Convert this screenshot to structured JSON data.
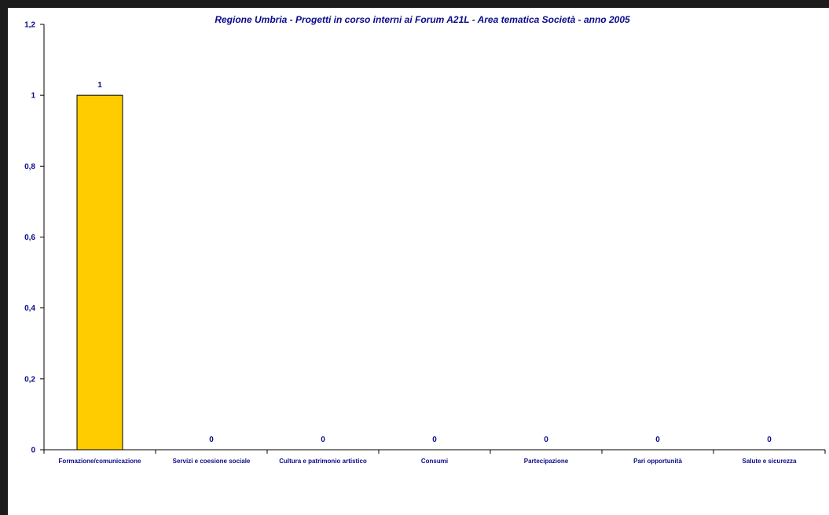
{
  "chart_data": {
    "type": "bar",
    "title": "Regione Umbria - Progetti in corso interni ai Forum A21L - Area tematica Società  - anno 2005",
    "xlabel": "",
    "ylabel": "",
    "categories": [
      "Formazione/comunicazione",
      "Servizi e coesione sociale",
      "Cultura e patrimonio artistico",
      "Consumi",
      "Partecipazione",
      "Pari opportunità",
      "Salute e sicurezza"
    ],
    "values": [
      1,
      0,
      0,
      0,
      0,
      0,
      0
    ],
    "data_labels": [
      "1",
      "0",
      "0",
      "0",
      "0",
      "0",
      "0"
    ],
    "ylim": [
      0,
      1.2
    ],
    "yticks": [
      0,
      0.2,
      0.4,
      0.6,
      0.8,
      1,
      1.2
    ],
    "ytick_labels": [
      "0",
      "0,2",
      "0,4",
      "0,6",
      "0,8",
      "1",
      "1,2"
    ],
    "grid": false,
    "legend": "none",
    "colors": {
      "bar_fill": "#FFCC00",
      "bar_stroke": "#000000",
      "text": "#0a0a8c",
      "axis": "#000000",
      "frame": "#1c1c1c"
    }
  }
}
